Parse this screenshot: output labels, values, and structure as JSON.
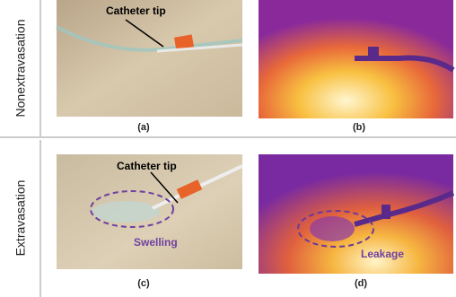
{
  "rows": [
    {
      "label": "Nonextravasation",
      "panels": [
        {
          "caption": "(a)",
          "annotations": [
            "Catheter tip"
          ]
        },
        {
          "caption": "(b)",
          "annotations": []
        }
      ]
    },
    {
      "label": "Extravasation",
      "panels": [
        {
          "caption": "(c)",
          "annotations": [
            "Catheter tip",
            "Swelling"
          ]
        },
        {
          "caption": "(d)",
          "annotations": [
            "Leakage"
          ]
        }
      ]
    }
  ]
}
